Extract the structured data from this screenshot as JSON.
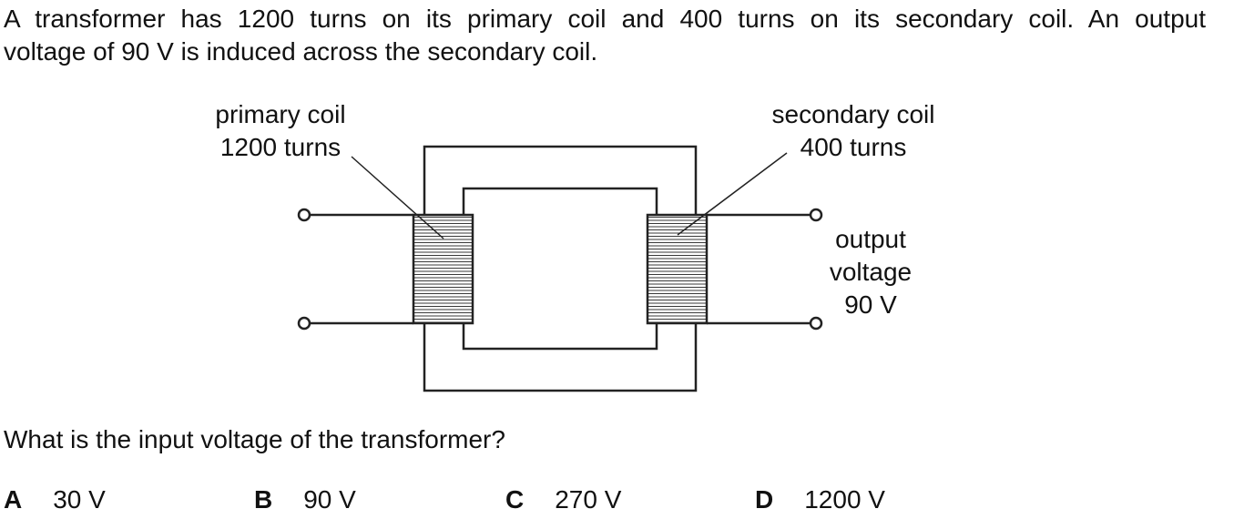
{
  "question_stem": {
    "line1": "A transformer has 1200 turns on its primary coil and 400 turns on its secondary coil. An output",
    "line2": "voltage of 90 V is induced across the secondary coil."
  },
  "diagram": {
    "primary_label": "primary coil",
    "primary_turns": "1200 turns",
    "secondary_label": "secondary coil",
    "secondary_turns": "400 turns",
    "output_label_1": "output",
    "output_label_2": "voltage",
    "output_label_3": "90 V"
  },
  "question": "What is the input voltage of the transformer?",
  "options": [
    {
      "letter": "A",
      "value": "30 V"
    },
    {
      "letter": "B",
      "value": "90 V"
    },
    {
      "letter": "C",
      "value": "270 V"
    },
    {
      "letter": "D",
      "value": "1200 V"
    }
  ]
}
